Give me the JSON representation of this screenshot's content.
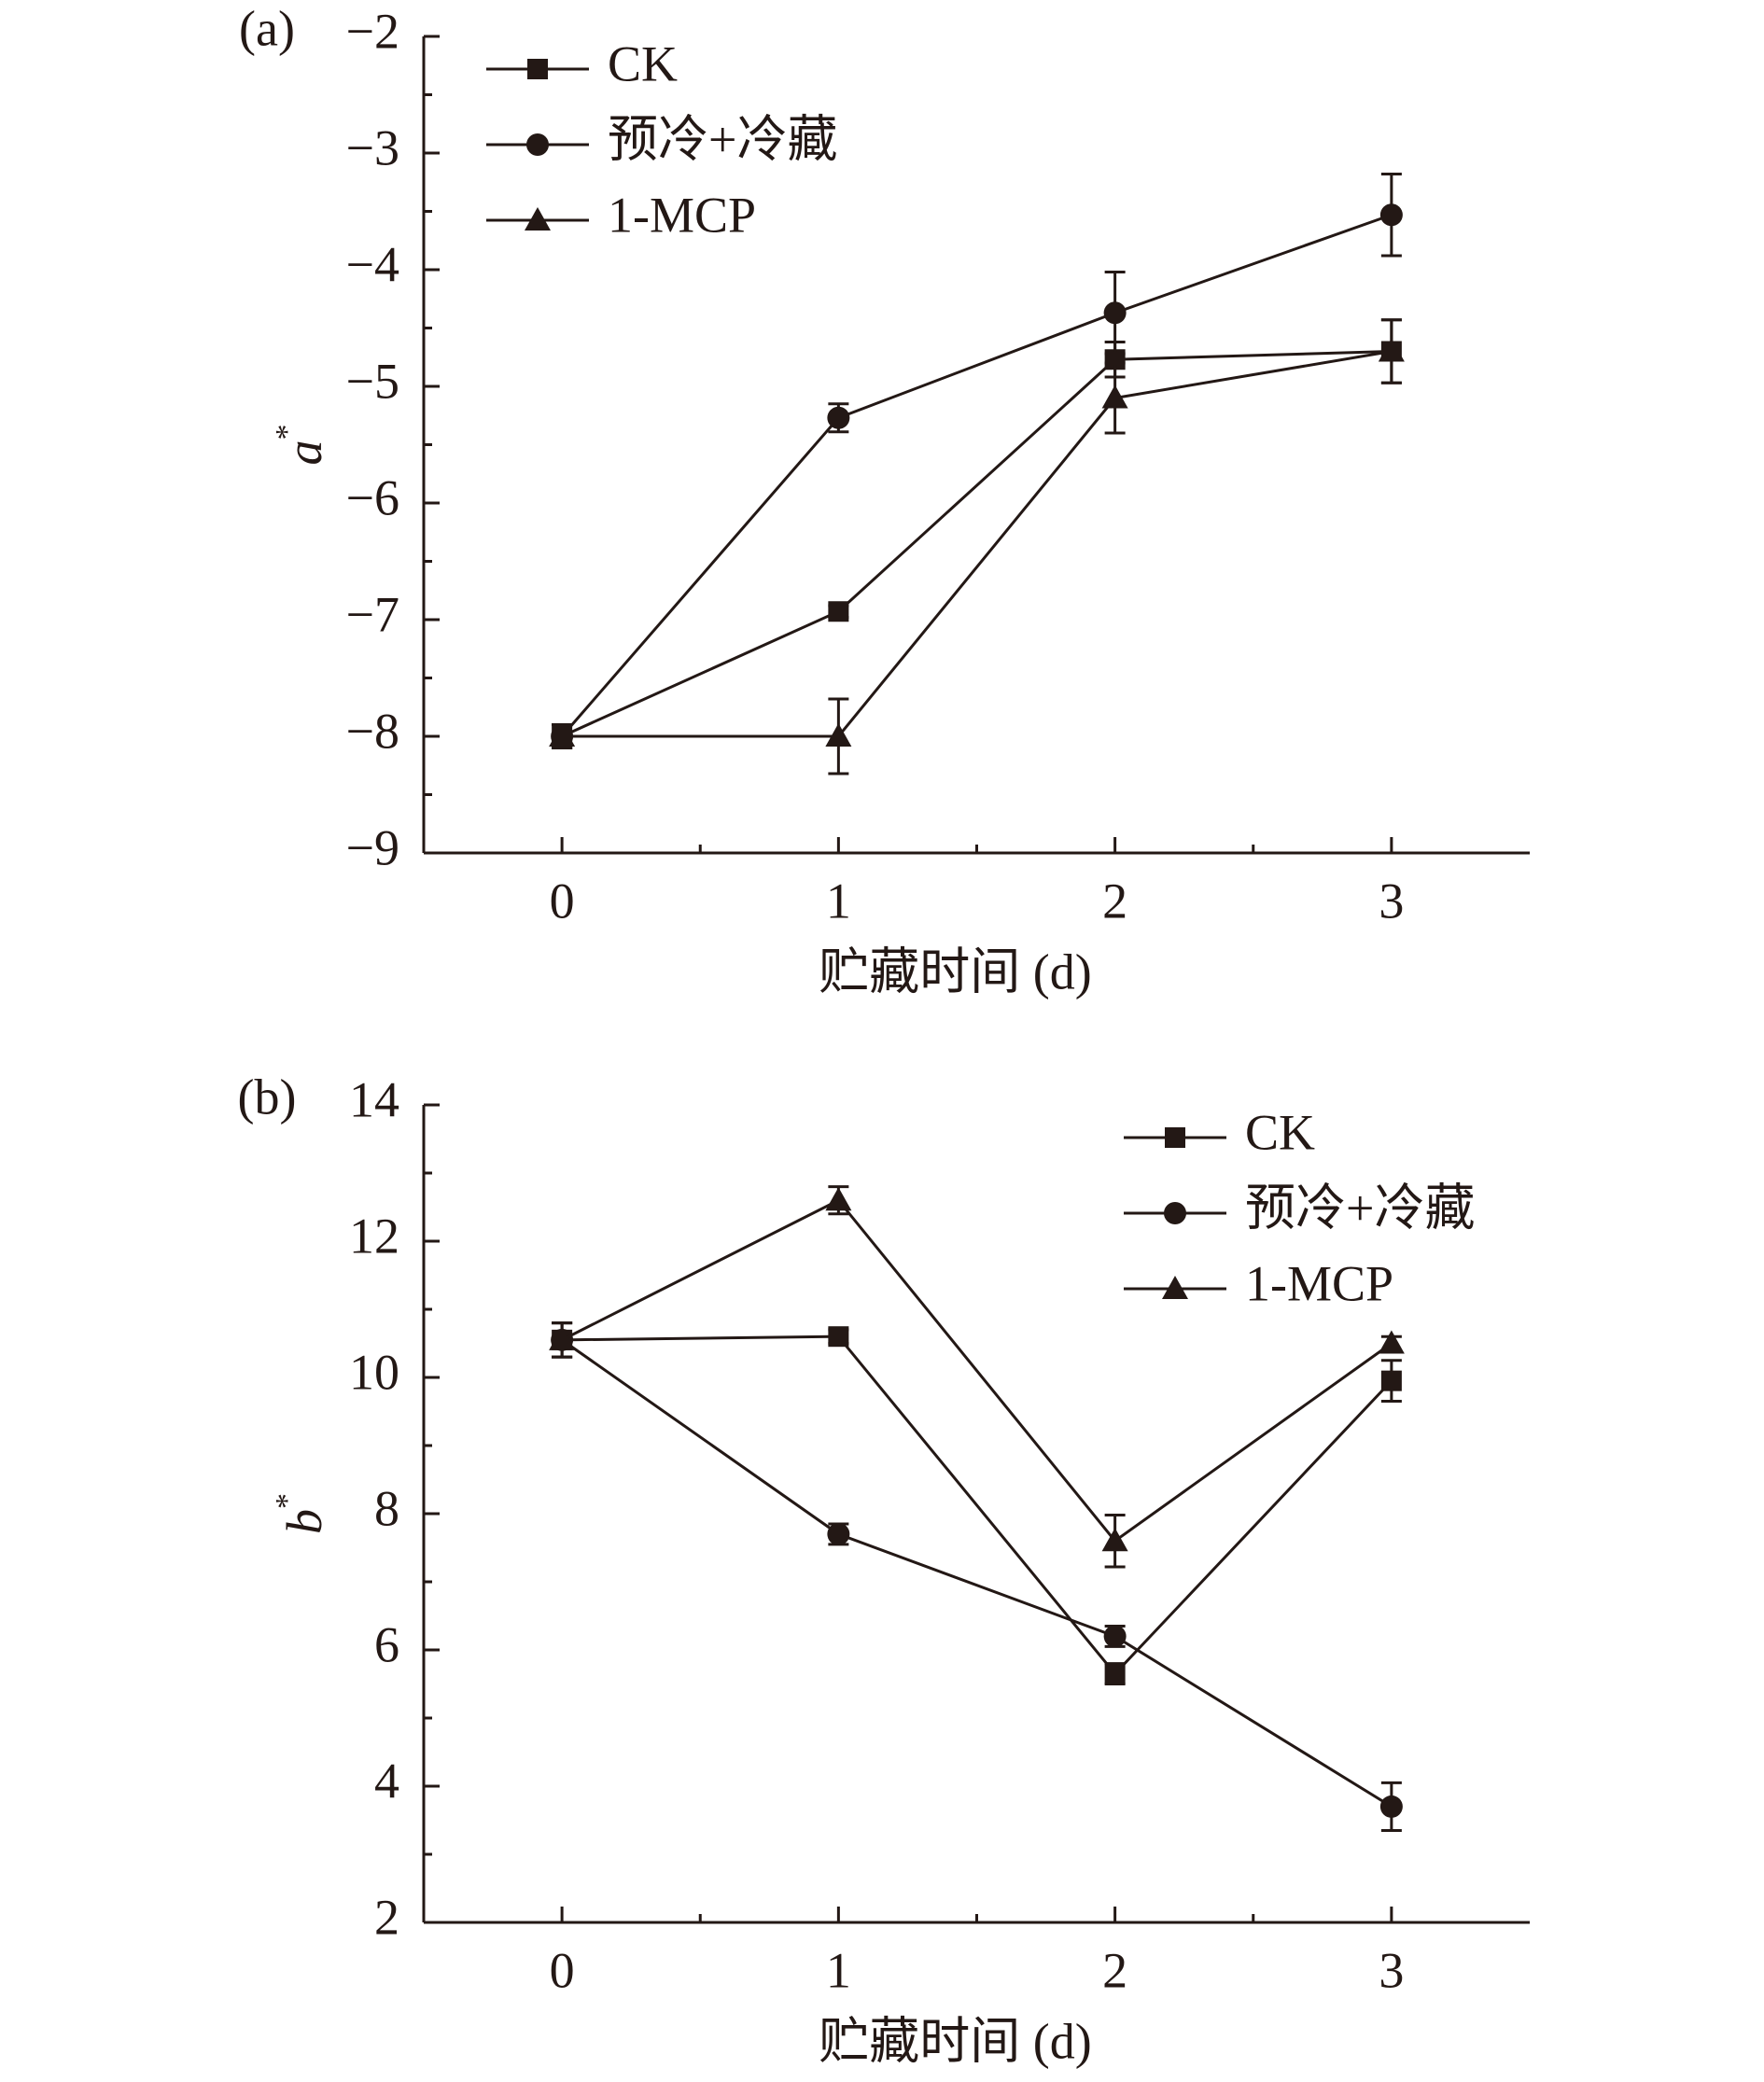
{
  "chart_data": [
    {
      "type": "line",
      "panel_label": "(a)",
      "x_label": "贮藏时间 (d)",
      "y_label": "a",
      "y_label_sup": "*",
      "x": [
        0,
        1,
        2,
        3
      ],
      "xlim": [
        -0.5,
        3.5
      ],
      "xticks": [
        0,
        1,
        2,
        3
      ],
      "ylim": [
        -9,
        -2
      ],
      "yticks": [
        {
          "value": -9,
          "label": "−9"
        },
        {
          "value": -8,
          "label": "−8"
        },
        {
          "value": -7,
          "label": "−7"
        },
        {
          "value": -6,
          "label": "−6"
        },
        {
          "value": -5,
          "label": "−5"
        },
        {
          "value": -4,
          "label": "−4"
        },
        {
          "value": -3,
          "label": "−3"
        },
        {
          "value": -2,
          "label": "−2"
        }
      ],
      "legend": "upper left",
      "series": [
        {
          "name": "CK",
          "color": "#231815",
          "marker": "square",
          "values": [
            -8.0,
            -6.93,
            -4.77,
            -4.7
          ],
          "errors": [
            0.1,
            0.05,
            0.15,
            0.27
          ]
        },
        {
          "name": "预冷+冷藏",
          "color": "#231815",
          "marker": "circle",
          "values": [
            -8.0,
            -5.27,
            -4.37,
            -3.53
          ],
          "errors": [
            0.1,
            0.12,
            0.35,
            0.35
          ]
        },
        {
          "name": "1-MCP",
          "color": "#231815",
          "marker": "triangle",
          "values": [
            -8.0,
            -8.0,
            -5.1,
            -4.7
          ],
          "errors": [
            0.1,
            0.32,
            0.3,
            0.27
          ]
        }
      ]
    },
    {
      "type": "line",
      "panel_label": "(b)",
      "x_label": "贮藏时间 (d)",
      "y_label": "b",
      "y_label_sup": "*",
      "x": [
        0,
        1,
        2,
        3
      ],
      "xlim": [
        -0.5,
        3.5
      ],
      "xticks": [
        0,
        1,
        2,
        3
      ],
      "ylim": [
        2,
        14
      ],
      "yticks": [
        2,
        4,
        6,
        8,
        10,
        12,
        14
      ],
      "legend": "upper right",
      "series": [
        {
          "name": "CK",
          "color": "#231815",
          "marker": "square",
          "values": [
            10.55,
            10.6,
            5.65,
            9.95
          ],
          "errors": [
            0.25,
            0.1,
            0.15,
            0.3
          ]
        },
        {
          "name": "预冷+冷藏",
          "color": "#231815",
          "marker": "circle",
          "values": [
            10.55,
            7.7,
            6.2,
            3.7
          ],
          "errors": [
            0.25,
            0.15,
            0.15,
            0.35
          ]
        },
        {
          "name": "1-MCP",
          "color": "#231815",
          "marker": "triangle",
          "values": [
            10.55,
            12.6,
            7.6,
            10.5
          ],
          "errors": [
            0.25,
            0.2,
            0.38,
            0.1
          ]
        }
      ]
    }
  ]
}
